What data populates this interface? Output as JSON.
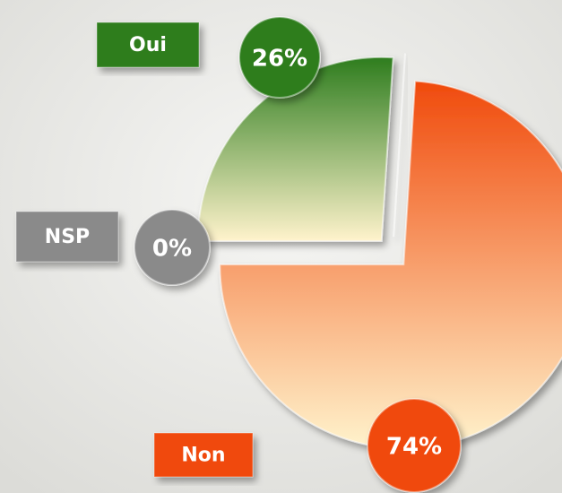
{
  "chart_data": {
    "type": "pie",
    "categories": [
      "Oui",
      "NSP",
      "Non"
    ],
    "values": [
      26,
      0,
      74
    ],
    "value_labels": [
      "26%",
      "0%",
      "74%"
    ],
    "colors": [
      "#2e7d1e",
      "#8a8a8a",
      "#f04a0c"
    ]
  }
}
